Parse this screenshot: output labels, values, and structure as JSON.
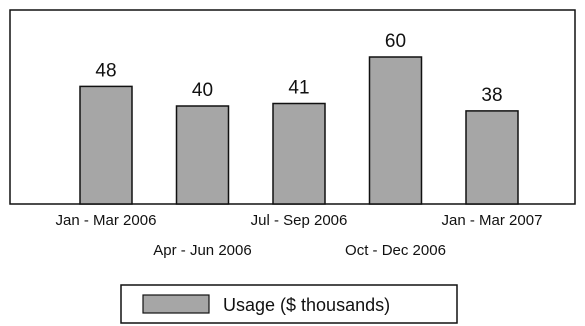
{
  "chart_data": {
    "type": "bar",
    "categories": [
      "Jan - Mar 2006",
      "Apr - Jun 2006",
      "Jul - Sep 2006",
      "Oct - Dec 2006",
      "Jan - Mar 2007"
    ],
    "series": [
      {
        "name": "Usage ($ thousands)",
        "values": [
          48,
          40,
          41,
          60,
          38
        ]
      }
    ],
    "data_labels": [
      "48",
      "40",
      "41",
      "60",
      "38"
    ],
    "title": "",
    "xlabel": "",
    "ylabel": "",
    "ylim": [
      0,
      75
    ],
    "grid": false,
    "legend": {
      "position": "bottom-center",
      "label": "Usage ($ thousands)"
    },
    "colors": {
      "bar_fill": "#a6a6a6",
      "bar_stroke": "#111111",
      "frame": "#111111",
      "background": "#ffffff"
    }
  }
}
